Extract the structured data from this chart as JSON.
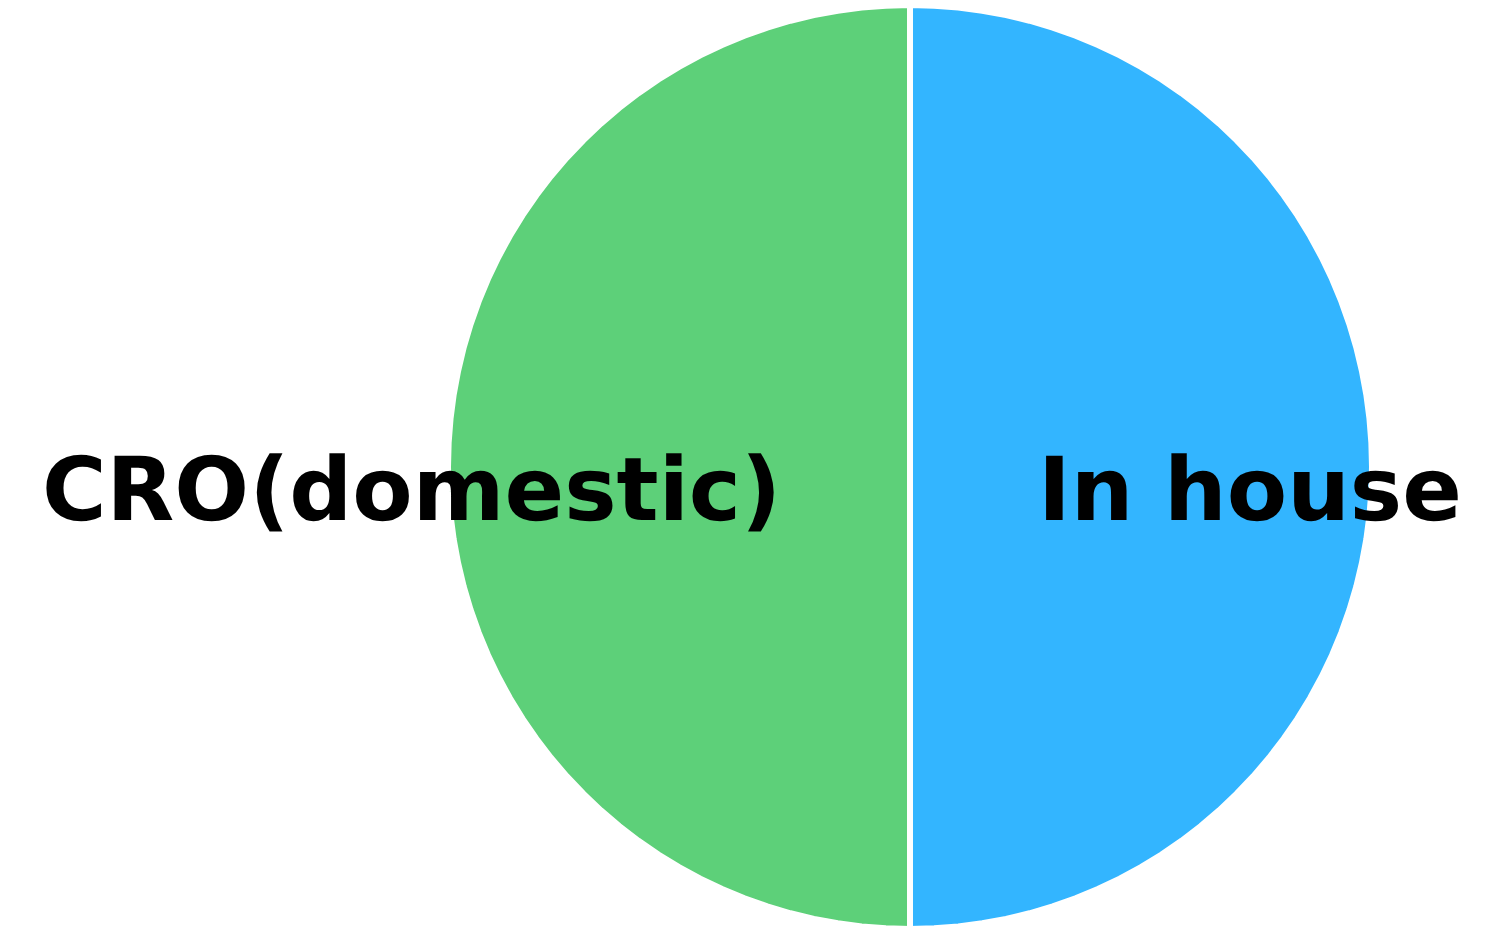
{
  "chart_data": {
    "type": "pie",
    "categories": [
      "In house",
      "CRO(domestic)"
    ],
    "values": [
      50,
      50
    ],
    "colors": [
      "#33b5ff",
      "#5dd079"
    ]
  }
}
